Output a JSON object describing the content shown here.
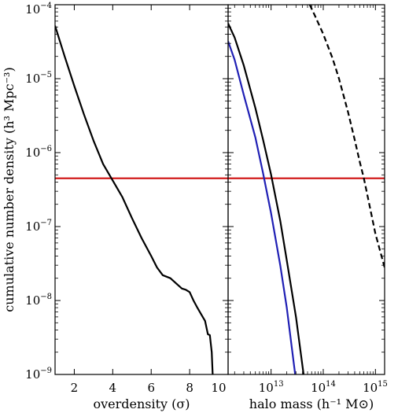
{
  "chart_data": [
    {
      "type": "line",
      "xlabel": "overdensity (σ)",
      "ylabel": "cumulative number density (h³ Mpc⁻³)",
      "xlim": [
        1,
        10
      ],
      "ylim": [
        1e-09,
        0.0001
      ],
      "yscale": "log",
      "xticks": [
        2,
        4,
        6,
        8,
        10
      ],
      "xtick_labels": [
        "2",
        "4",
        "6",
        "8",
        "10"
      ],
      "yticks": [
        1e-09,
        1e-08,
        1e-07,
        1e-06,
        1e-05,
        0.0001
      ],
      "ytick_labels": [
        {
          "base": "10",
          "exp": "−9"
        },
        {
          "base": "10",
          "exp": "−8"
        },
        {
          "base": "10",
          "exp": "−7"
        },
        {
          "base": "10",
          "exp": "−6"
        },
        {
          "base": "10",
          "exp": "−5"
        },
        {
          "base": "10",
          "exp": "−4"
        }
      ],
      "grid": false,
      "series": [
        {
          "color": "#000000",
          "style": "solid",
          "x": [
            1.0,
            1.5,
            2.0,
            2.5,
            3.0,
            3.5,
            4.0,
            4.5,
            5.0,
            5.5,
            6.0,
            6.3,
            6.6,
            7.0,
            7.3,
            7.6,
            7.8,
            8.0,
            8.2,
            8.4,
            8.6,
            8.8,
            8.95,
            9.05,
            9.15,
            9.2
          ],
          "y": [
            5.2e-05,
            2e-05,
            8e-06,
            3.3e-06,
            1.45e-06,
            7e-07,
            4.2e-07,
            2.5e-07,
            1.3e-07,
            7e-08,
            4e-08,
            2.8e-08,
            2.2e-08,
            2e-08,
            1.7e-08,
            1.45e-08,
            1.4e-08,
            1.3e-08,
            1e-08,
            8e-09,
            6.5e-09,
            5.3e-09,
            3.5e-09,
            3.4e-09,
            2e-09,
            1e-09
          ]
        }
      ],
      "hline": {
        "y": 4.5e-07,
        "color": "#cc0000"
      }
    },
    {
      "type": "line",
      "xlabel": "halo mass (h⁻¹ M⊙)",
      "xlim": [
        1500000000000.0,
        1500000000000000.0
      ],
      "ylim": [
        1e-09,
        0.0001
      ],
      "xscale": "log",
      "yscale": "log",
      "xticks": [
        10000000000000.0,
        100000000000000.0,
        1000000000000000.0
      ],
      "xtick_labels": [
        {
          "base": "10",
          "exp": "13"
        },
        {
          "base": "10",
          "exp": "14"
        },
        {
          "base": "10",
          "exp": "15"
        }
      ],
      "grid": false,
      "series": [
        {
          "color": "#000000",
          "style": "solid",
          "x": [
            1500000000000.0,
            2000000000000.0,
            3000000000000.0,
            5000000000000.0,
            7000000000000.0,
            10000000000000.0,
            15000000000000.0,
            20000000000000.0,
            30000000000000.0,
            42000000000000.0
          ],
          "y": [
            5.6e-05,
            3.6e-05,
            1.5e-05,
            4e-06,
            1.5e-06,
            5e-07,
            1.2e-07,
            3.5e-08,
            6e-09,
            1e-09
          ]
        },
        {
          "color": "#1f1fb4",
          "style": "solid",
          "x": [
            1500000000000.0,
            2000000000000.0,
            3000000000000.0,
            5000000000000.0,
            7000000000000.0,
            10000000000000.0,
            15000000000000.0,
            20000000000000.0,
            29000000000000.0
          ],
          "y": [
            3.2e-05,
            1.8e-05,
            6e-06,
            1.6e-06,
            5.3e-07,
            1.5e-07,
            3e-08,
            8e-09,
            1e-09
          ]
        },
        {
          "color": "#000000",
          "style": "dashed",
          "x": [
            55000000000000.0,
            70000000000000.0,
            100000000000000.0,
            150000000000000.0,
            200000000000000.0,
            300000000000000.0,
            400000000000000.0,
            500000000000000.0,
            600000000000000.0,
            800000000000000.0,
            1000000000000000.0,
            1500000000000000.0
          ],
          "y": [
            0.0001,
            7e-05,
            4e-05,
            1.9e-05,
            1e-05,
            3.5e-06,
            1.5e-06,
            7.5e-07,
            4.5e-07,
            1.7e-07,
            8e-08,
            2.8e-08
          ]
        }
      ],
      "hline": {
        "y": 4.5e-07,
        "color": "#cc0000"
      }
    }
  ]
}
